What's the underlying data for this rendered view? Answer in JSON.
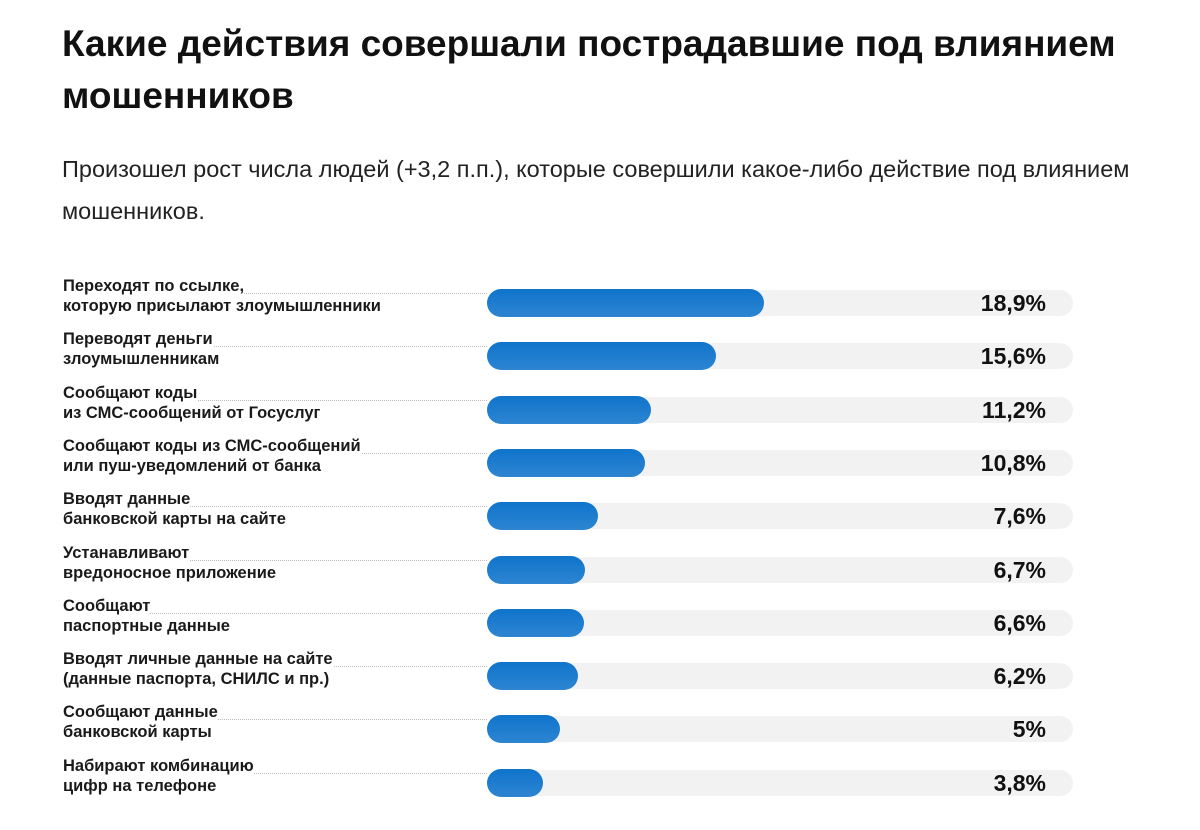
{
  "chart_data": {
    "type": "bar",
    "orientation": "horizontal",
    "title": "Какие действия совершали пострадавшие под влиянием мошенников",
    "subtitle": "Произошел рост числа людей (+3,2 п.п.), которые совершили какое-либо действие под влиянием мошенников.",
    "categories": [
      "Переходят по ссылке,\nкоторую присылают злоумышленники",
      "Переводят деньги\nзлоумышленникам",
      "Сообщают коды\nиз СМС-сообщений от Госуслуг",
      "Сообщают коды из СМС-сообщений\nили пуш-уведомлений от банка",
      "Вводят данные\nбанковской карты на сайте",
      "Устанавливают\nвредоносное приложение",
      "Сообщают\nпаспортные данные",
      "Вводят личные данные на сайте\n(данные паспорта, СНИЛС и пр.)",
      "Сообщают данные\nбанковской карты",
      "Набирают комбинацию\nцифр на телефоне"
    ],
    "values": [
      18.9,
      15.6,
      11.2,
      10.8,
      7.6,
      6.7,
      6.6,
      6.2,
      5,
      3.8
    ],
    "value_labels": [
      "18,9%",
      "15,6%",
      "11,2%",
      "10,8%",
      "7,6%",
      "6,7%",
      "6,6%",
      "6,2%",
      "5%",
      "3,8%"
    ],
    "color": "#0f74cc",
    "xlim": [
      0,
      40
    ]
  }
}
